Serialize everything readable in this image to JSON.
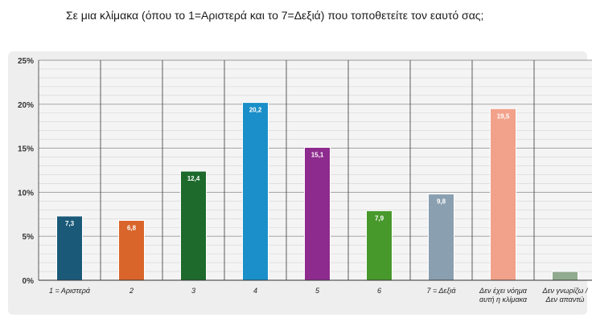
{
  "chart_data": {
    "type": "bar",
    "title": "Σε μια κλίμακα (όπου το 1=Αριστερά και το 7=Δεξιά) που τοποθετείτε τον εαυτό σας;",
    "xlabel": "",
    "ylabel": "",
    "ylim": [
      0,
      25
    ],
    "yticks": [
      "0%",
      "5%",
      "10%",
      "15%",
      "20%",
      "25%"
    ],
    "grid": true,
    "legend": "none",
    "categories": [
      "1 = Αριστερά",
      "2",
      "3",
      "4",
      "5",
      "6",
      "7 = Δεξιά",
      "Δεν έχει νόημα αυτή η κλίμακα",
      "Δεν γνωρίζω / Δεν απαντώ"
    ],
    "category_lines": [
      [
        "1 = Αριστερά"
      ],
      [
        "2"
      ],
      [
        "3"
      ],
      [
        "4"
      ],
      [
        "5"
      ],
      [
        "6"
      ],
      [
        "7 = Δεξιά"
      ],
      [
        "Δεν έχει νόημα",
        "αυτή η κλίμακα"
      ],
      [
        "Δεν γνωρίζω /",
        "Δεν απαντώ"
      ]
    ],
    "values": [
      7.3,
      6.8,
      12.4,
      20.2,
      15.1,
      7.9,
      9.8,
      19.5,
      1.0
    ],
    "data_labels": [
      "7,3",
      "6,8",
      "12,4",
      "20,2",
      "15,1",
      "7,9",
      "9,8",
      "19,5",
      ""
    ],
    "colors": [
      "#1a5a78",
      "#d9652a",
      "#1d6a2c",
      "#1a8fc9",
      "#8e2b8e",
      "#48992c",
      "#8a9fb0",
      "#f2a28b",
      "#90ab90"
    ]
  }
}
